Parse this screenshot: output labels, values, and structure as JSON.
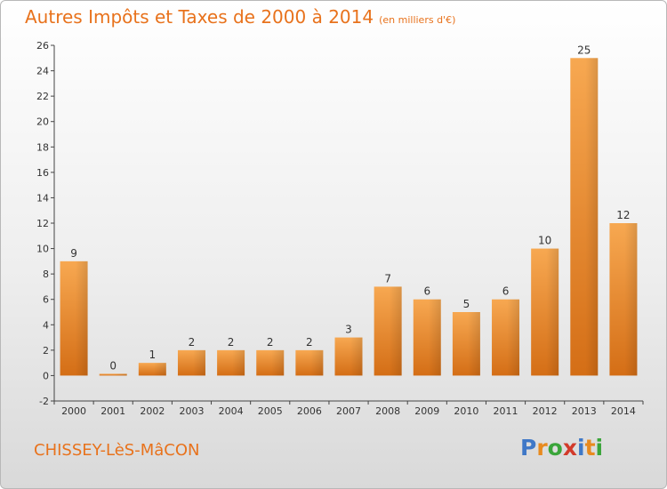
{
  "header": {
    "title": "Autres Impôts et Taxes de 2000 à 2014",
    "subtitle": "(en milliers d'€)"
  },
  "footer": {
    "commune": "CHISSEY-LèS-MâCON",
    "logo_letters": [
      "P",
      "r",
      "o",
      "x",
      "i",
      "t",
      "i"
    ],
    "logo_colors": [
      "#3f78c7",
      "#e88a1e",
      "#3aa53a",
      "#d23a2a",
      "#3f78c7",
      "#e88a1e",
      "#3aa53a"
    ]
  },
  "colors": {
    "bar_light": "#f7a851",
    "bar_dark": "#d46e16",
    "title": "#e8721c"
  },
  "chart_data": {
    "type": "bar",
    "title": "Autres Impôts et Taxes de 2000 à 2014",
    "xlabel": "",
    "ylabel": "",
    "categories": [
      "2000",
      "2001",
      "2002",
      "2003",
      "2004",
      "2005",
      "2006",
      "2007",
      "2008",
      "2009",
      "2010",
      "2011",
      "2012",
      "2013",
      "2014"
    ],
    "values": [
      9,
      0,
      1,
      2,
      2,
      2,
      2,
      3,
      7,
      6,
      5,
      6,
      10,
      25,
      12
    ],
    "value_labels": [
      "9",
      "0",
      "1",
      "2",
      "2",
      "2",
      "2",
      "3",
      "7",
      "6",
      "5",
      "6",
      "10",
      "25",
      "12"
    ],
    "ylim": [
      -2,
      26
    ],
    "yticks": [
      -2,
      0,
      2,
      4,
      6,
      8,
      10,
      12,
      14,
      16,
      18,
      20,
      22,
      24,
      26
    ],
    "grid": false
  }
}
